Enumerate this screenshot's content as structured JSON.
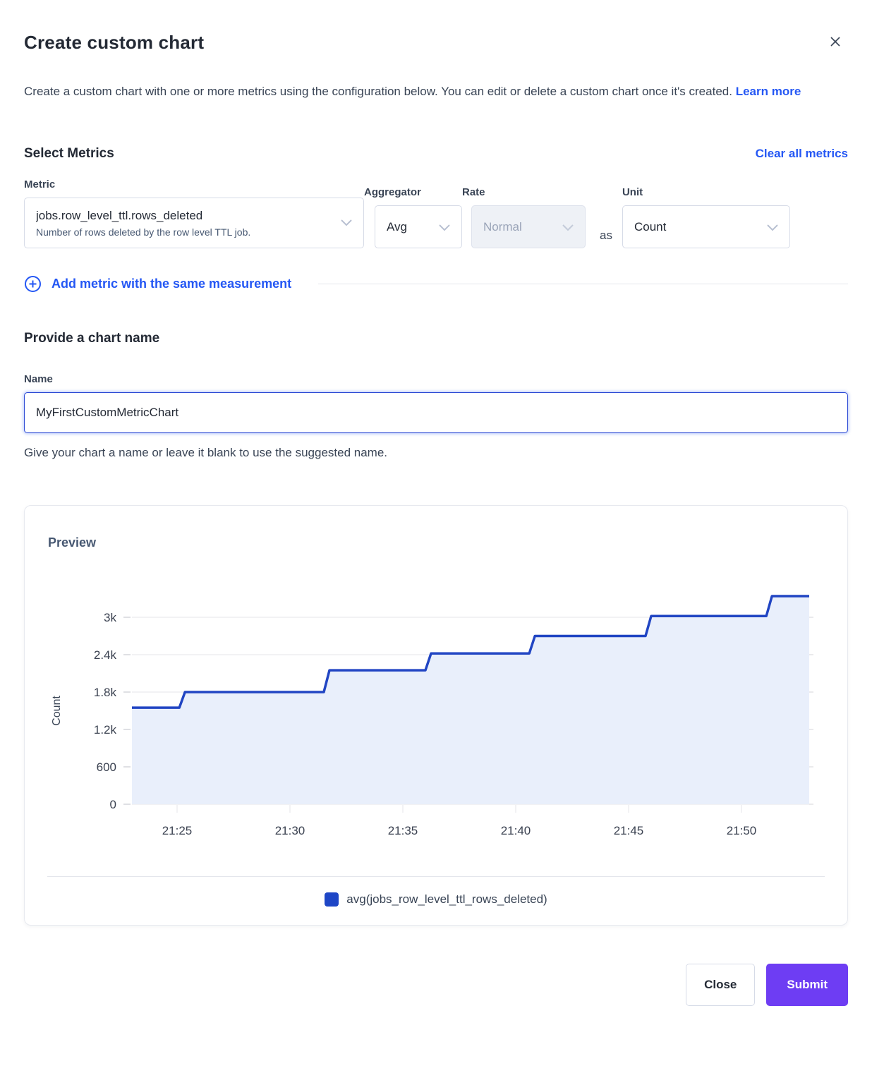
{
  "dialog": {
    "title": "Create custom chart",
    "description": "Create a custom chart with one or more metrics using the configuration below. You can edit or delete a custom chart once it's created.",
    "learn_more_label": "Learn more"
  },
  "metrics_section": {
    "heading": "Select Metrics",
    "clear_all_label": "Clear all metrics",
    "fields": {
      "metric": {
        "label": "Metric",
        "value": "jobs.row_level_ttl.rows_deleted",
        "description": "Number of rows deleted by the row level TTL job."
      },
      "aggregator": {
        "label": "Aggregator",
        "value": "Avg"
      },
      "rate": {
        "label": "Rate",
        "value": "Normal",
        "disabled": true
      },
      "as_text": "as",
      "unit": {
        "label": "Unit",
        "value": "Count"
      }
    },
    "add_metric_label": "Add metric with the same measurement"
  },
  "name_section": {
    "heading": "Provide a chart name",
    "label": "Name",
    "value": "MyFirstCustomMetricChart",
    "helper": "Give your chart a name or leave it blank to use the suggested name."
  },
  "preview": {
    "heading": "Preview"
  },
  "chart_data": {
    "type": "area",
    "subtype": "step-line",
    "title": "Preview",
    "xlabel": "",
    "ylabel": "Count",
    "x_unit": "time (HH:MM)",
    "x_domain_minutes": [
      23,
      53
    ],
    "x_domain_labels": [
      "21:23",
      "21:53"
    ],
    "x_ticks": [
      {
        "m": 25,
        "label": "21:25"
      },
      {
        "m": 30,
        "label": "21:30"
      },
      {
        "m": 35,
        "label": "21:35"
      },
      {
        "m": 40,
        "label": "21:40"
      },
      {
        "m": 45,
        "label": "21:45"
      },
      {
        "m": 50,
        "label": "21:50"
      }
    ],
    "y_ticks": [
      {
        "v": 0,
        "label": "0"
      },
      {
        "v": 600,
        "label": "600"
      },
      {
        "v": 1200,
        "label": "1.2k"
      },
      {
        "v": 1800,
        "label": "1.8k"
      },
      {
        "v": 2400,
        "label": "2.4k"
      },
      {
        "v": 3000,
        "label": "3k"
      }
    ],
    "ylim": [
      0,
      3850
    ],
    "grid": true,
    "legend_position": "bottom",
    "series": [
      {
        "name": "avg(jobs_row_level_ttl_rows_deleted)",
        "line_color": "#2145c3",
        "fill_color": "#e9effb",
        "swatch_color": "#1e46c6",
        "step_points": [
          [
            23.0,
            1550
          ],
          [
            25.1,
            1550
          ],
          [
            25.35,
            1800
          ],
          [
            31.5,
            1800
          ],
          [
            31.75,
            2150
          ],
          [
            36.0,
            2150
          ],
          [
            36.25,
            2420
          ],
          [
            40.6,
            2420
          ],
          [
            40.85,
            2700
          ],
          [
            45.75,
            2700
          ],
          [
            46.0,
            3020
          ],
          [
            51.1,
            3020
          ],
          [
            51.35,
            3340
          ],
          [
            53.0,
            3340
          ]
        ]
      }
    ]
  },
  "footer": {
    "close_label": "Close",
    "submit_label": "Submit"
  },
  "colors": {
    "link_blue": "#2457f4",
    "accent_purple": "#6e3df3",
    "heading_dark": "#242a35",
    "body_text": "#394455",
    "chart_line": "#2145c3",
    "chart_fill": "#e9effb",
    "grid_line": "#e4e5e9"
  }
}
